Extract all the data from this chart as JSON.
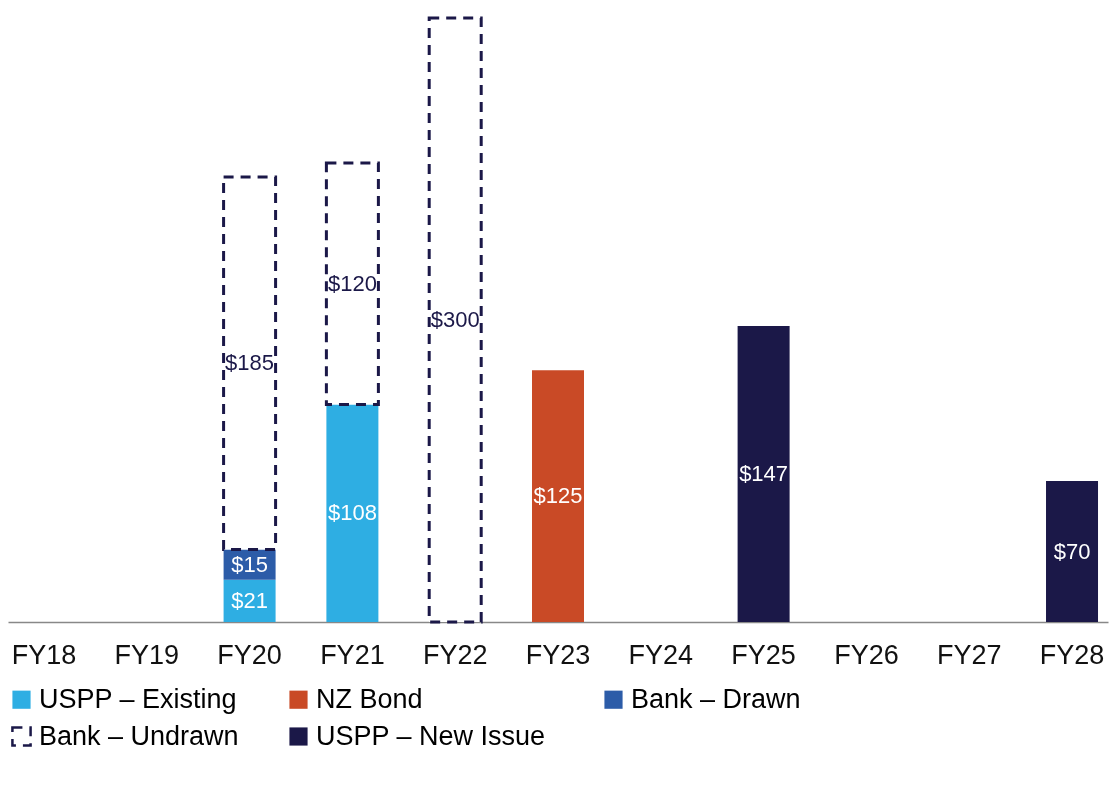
{
  "chart_data": {
    "type": "bar",
    "stacked": true,
    "categories": [
      "FY18",
      "FY19",
      "FY20",
      "FY21",
      "FY22",
      "FY23",
      "FY24",
      "FY25",
      "FY26",
      "FY27",
      "FY28"
    ],
    "series": [
      {
        "name": "USPP – Existing",
        "color": "#2eaee3",
        "values": [
          null,
          null,
          21,
          108,
          null,
          null,
          null,
          null,
          null,
          null,
          null
        ],
        "value_labels": [
          null,
          null,
          "$21",
          "$108",
          null,
          null,
          null,
          null,
          null,
          null,
          null
        ]
      },
      {
        "name": "NZ Bond",
        "color": "#c94a26",
        "values": [
          null,
          null,
          null,
          null,
          null,
          125,
          null,
          null,
          null,
          null,
          null
        ],
        "value_labels": [
          null,
          null,
          null,
          null,
          null,
          "$125",
          null,
          null,
          null,
          null,
          null
        ]
      },
      {
        "name": "Bank – Drawn",
        "color": "#2c5ca8",
        "values": [
          null,
          null,
          15,
          null,
          null,
          null,
          null,
          null,
          null,
          null,
          null
        ],
        "value_labels": [
          null,
          null,
          "$15",
          null,
          null,
          null,
          null,
          null,
          null,
          null,
          null
        ]
      },
      {
        "name": "Bank – Undrawn",
        "color": "#1b1848",
        "line_style": "dashed",
        "values": [
          null,
          null,
          185,
          120,
          300,
          null,
          null,
          null,
          null,
          null,
          null
        ],
        "value_labels": [
          null,
          null,
          "$185",
          "$120",
          "$300",
          null,
          null,
          null,
          null,
          null,
          null
        ]
      },
      {
        "name": "USPP  – New Issue",
        "color": "#1b1848",
        "values": [
          null,
          null,
          null,
          null,
          null,
          null,
          null,
          147,
          null,
          null,
          70
        ],
        "value_labels": [
          null,
          null,
          null,
          null,
          null,
          null,
          null,
          "$147",
          null,
          null,
          "$70"
        ]
      }
    ],
    "legend": "bottom",
    "grid": false
  }
}
